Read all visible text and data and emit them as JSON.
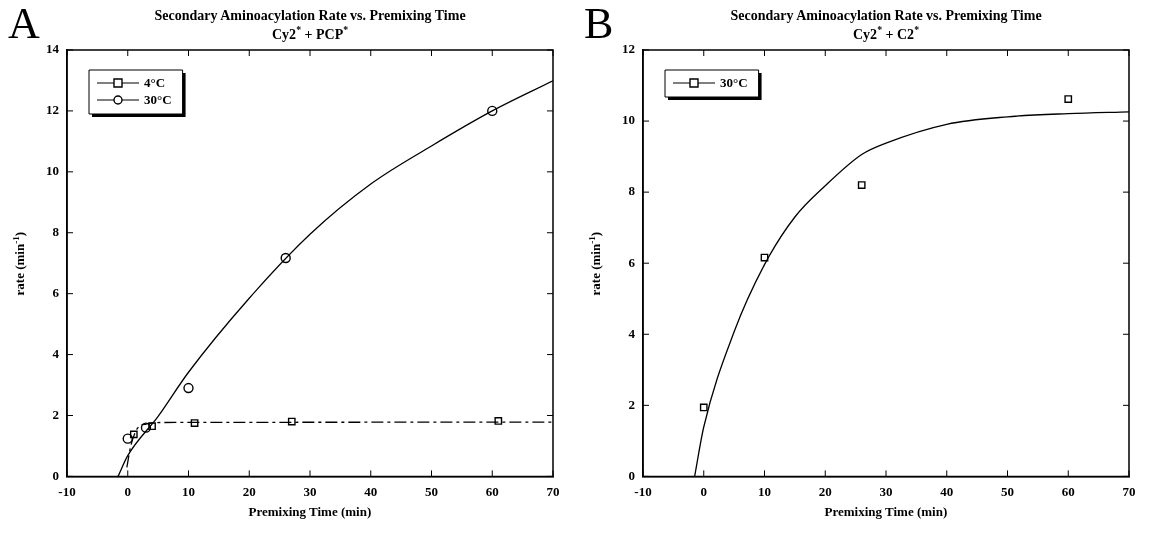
{
  "chart_data": [
    {
      "type": "scatter",
      "title": "Secondary Aminoacylation Rate vs. Premixing Time",
      "subtitle": "Cy2$^{*}$ + PCP$^{*}$",
      "xlabel": "Premixing Time (min)",
      "ylabel": "rate (min$^{-1}$)",
      "annotations": [
        "A"
      ],
      "xlim": [
        -10,
        70
      ],
      "xticks": [
        -10,
        0,
        10,
        20,
        30,
        40,
        50,
        60,
        70
      ],
      "ylim": [
        0,
        14
      ],
      "yticks": [
        0,
        2,
        4,
        6,
        8,
        10,
        12,
        14
      ],
      "legend": "top left",
      "series": [
        {
          "name": "4°C",
          "type": "scatter",
          "marker": "square",
          "color": "#000000",
          "x": [
            1,
            4,
            11,
            27,
            61
          ],
          "values": [
            1.38,
            1.65,
            1.75,
            1.8,
            1.82
          ]
        },
        {
          "name": "30°C",
          "type": "scatter",
          "marker": "circle",
          "color": "#000000",
          "x": [
            0,
            3,
            10,
            26,
            60
          ],
          "values": [
            1.24,
            1.6,
            2.9,
            7.17,
            12.0
          ]
        },
        {
          "type": "line",
          "line_style": "dashed",
          "color": "#000000",
          "x": [
            -0.15,
            0.5,
            1.5,
            3,
            6,
            70
          ],
          "values": [
            0.3,
            1.0,
            1.55,
            1.72,
            1.77,
            1.78
          ]
        },
        {
          "type": "line",
          "line_style": "solid",
          "color": "#000000",
          "x": [
            -1.6,
            0,
            5,
            10,
            20,
            30,
            40,
            50,
            60,
            70
          ],
          "values": [
            0,
            0.68,
            1.97,
            3.42,
            5.85,
            7.95,
            9.6,
            10.85,
            12.0,
            12.99
          ]
        }
      ]
    },
    {
      "type": "scatter",
      "title": "Secondary Aminoacylation Rate vs. Premixing Time",
      "subtitle": "Cy2$^{*}$ + C2$^{*}$",
      "xlabel": "Premixing Time (min)",
      "ylabel": "rate (min$^{-1}$)",
      "annotations": [
        "B"
      ],
      "xlim": [
        -10,
        70
      ],
      "xticks": [
        -10,
        0,
        10,
        20,
        30,
        40,
        50,
        60,
        70
      ],
      "ylim": [
        0,
        12
      ],
      "yticks": [
        0,
        2,
        4,
        6,
        8,
        10,
        12
      ],
      "legend": "top left",
      "series": [
        {
          "name": "30°C",
          "type": "scatter",
          "marker": "square",
          "color": "#000000",
          "x": [
            0,
            10,
            26,
            60
          ],
          "values": [
            1.94,
            6.16,
            8.2,
            10.62
          ]
        },
        {
          "type": "line",
          "line_style": "solid",
          "color": "#000000",
          "x": [
            -1.5,
            0,
            5,
            10,
            15,
            20,
            26,
            30,
            40,
            50,
            60,
            70
          ],
          "values": [
            0,
            1.39,
            4.07,
            5.96,
            7.3,
            8.18,
            9.06,
            9.38,
            9.91,
            10.12,
            10.21,
            10.26
          ]
        }
      ]
    }
  ]
}
